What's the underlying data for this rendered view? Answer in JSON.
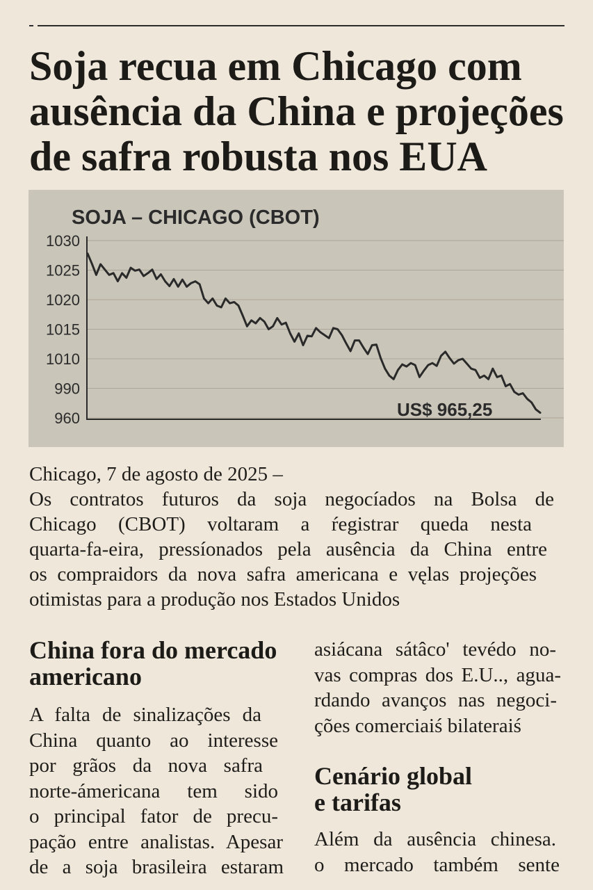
{
  "colors": {
    "paper": "#efe7da",
    "ink": "#1f1d1a",
    "chart_background": "#c9c5b8",
    "chart_line": "#2a2a2a",
    "grid": "#aaa596"
  },
  "article": {
    "headline": [
      "Soja recua em Chicago com",
      "ausência da China e projeções",
      "de safra robusta nos EUA"
    ],
    "dateline": "Chicago, 7 de agosto de 2025 –",
    "lead": [
      "Os contratos futuros da soja negocíados na Bolsa de",
      "Chicago (CBOT) voltaram a ŕegistrar queda nesta",
      "quarta-fa-eira, pressíonados pela ausência da China entre",
      "os compraidors da nova safra americana e vęlas projeções",
      "otimistas para a produção nos Estados Unidos"
    ],
    "section_china": {
      "heading": [
        "China fora do mercado",
        "americano"
      ],
      "body_col1": [
        "A falta de sinalizações da",
        "China quanto ao interesse",
        "por grãos da nova safra",
        "norte-ámericana tem sido",
        "o principal fator de precu-",
        "pação entre analistas. Apesar",
        "de a soja brasileira estaram"
      ],
      "body_col2": [
        "asiácana sátâco' tevédo no-",
        "vas compras dos E.U.., agua-",
        "rdando avanços nas negoci-",
        "ções comerciaiś bilateraiś"
      ]
    },
    "section_global": {
      "heading": [
        "Cenário global",
        "e tarifas"
      ],
      "body": [
        "Além da ausência chinesa.",
        "o mercado também sente"
      ]
    }
  },
  "chart_data": {
    "type": "line",
    "title": "SOJA – CHICAGO (CBOT)",
    "xlabel": "",
    "ylabel": "",
    "yticks": [
      1030,
      1025,
      1020,
      1015,
      1010,
      990,
      960
    ],
    "ylim": [
      960,
      1030
    ],
    "grid": true,
    "annotation": "US$ 965,25",
    "values": [
      1027.8,
      1026.1,
      1024.2,
      1026.0,
      1025.1,
      1024.2,
      1024.5,
      1023.1,
      1024.5,
      1023.7,
      1025.4,
      1024.9,
      1025.1,
      1024.0,
      1024.5,
      1025.1,
      1023.5,
      1024.3,
      1023.1,
      1022.3,
      1023.5,
      1022.2,
      1023.4,
      1022.2,
      1022.8,
      1023.1,
      1022.6,
      1020.2,
      1019.4,
      1020.2,
      1019.0,
      1018.7,
      1020.2,
      1019.4,
      1019.6,
      1019.0,
      1017.3,
      1015.5,
      1016.5,
      1016.0,
      1016.9,
      1016.3,
      1015.0,
      1015.5,
      1016.9,
      1015.8,
      1016.1,
      1014.3,
      1012.9,
      1014.3,
      1012.3,
      1013.9,
      1013.8,
      1015.2,
      1014.5,
      1014.0,
      1013.5,
      1015.2,
      1015.0,
      1014.0,
      1012.6,
      1011.3,
      1013.1,
      1013.1,
      1011.9,
      1010.8,
      1012.3,
      1012.4,
      1010.1,
      1003.3,
      998.6,
      996.2,
      1002.4,
      1006.2,
      1004.8,
      1007.1,
      1005.7,
      997.6,
      1001.9,
      1005.7,
      1007.1,
      1005.2,
      1010.5,
      1011.2,
      1010.1,
      1006.7,
      1009.0,
      1010.0,
      1006.7,
      1003.3,
      1002.4,
      997.1,
      998.6,
      996.2,
      1003.3,
      997.6,
      998.6,
      991.4,
      992.9,
      986.4,
      983.6,
      985.0,
      979.3,
      975.7,
      968.6,
      965.25
    ]
  }
}
